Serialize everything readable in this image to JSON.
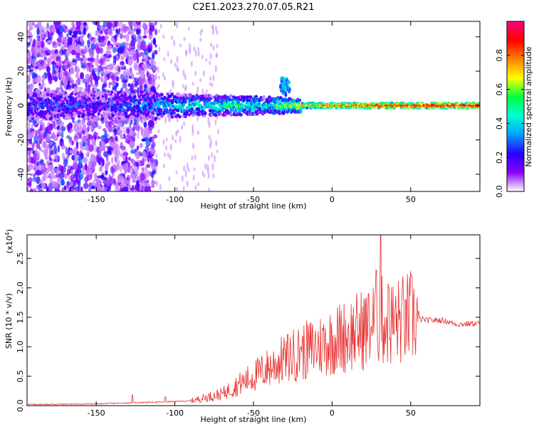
{
  "title": "C2E1.2023.270.07.05.R21",
  "chart_data": [
    {
      "type": "heatmap",
      "title": "C2E1.2023.270.07.05.R21",
      "xlabel": "Height of straight line (km)",
      "ylabel": "Frequency (Hz)",
      "xlim": [
        -194,
        94
      ],
      "ylim": [
        -50,
        49
      ],
      "xticks": [
        -150,
        -100,
        -50,
        0,
        50
      ],
      "yticks": [
        -40,
        -20,
        0,
        20,
        40
      ],
      "colorbar": {
        "label": "Normalized spectral amplitude",
        "range": [
          0.0,
          1.0
        ],
        "ticks": [
          0.0,
          0.2,
          0.4,
          0.6,
          0.8
        ],
        "colormap": [
          "#ffffff",
          "#8a00ff",
          "#2a00ff",
          "#00a0ff",
          "#00ffd0",
          "#00ff40",
          "#ffff00",
          "#ff8000",
          "#ff0000",
          "#ff0080"
        ]
      },
      "ridge": {
        "frequency_hz": 0,
        "points": [
          {
            "x": -190,
            "amp": 0.25
          },
          {
            "x": -150,
            "amp": 0.2
          },
          {
            "x": -120,
            "amp": 0.3
          },
          {
            "x": -100,
            "amp": 0.4
          },
          {
            "x": -80,
            "amp": 0.45
          },
          {
            "x": -60,
            "amp": 0.5
          },
          {
            "x": -40,
            "amp": 0.45
          },
          {
            "x": -20,
            "amp": 0.7
          },
          {
            "x": 0,
            "amp": 0.8
          },
          {
            "x": 20,
            "amp": 0.85
          },
          {
            "x": 50,
            "amp": 0.9
          },
          {
            "x": 90,
            "amp": 0.95
          }
        ]
      },
      "noise_extent_x": [
        -194,
        -112
      ],
      "grid": false
    },
    {
      "type": "line",
      "xlabel": "Height of straight line (km)",
      "ylabel": "SNR (10 * v/v)",
      "multiplier_label": "(x10",
      "multiplier_exp": "4",
      "xlim": [
        -194,
        94
      ],
      "ylim": [
        0,
        2.9
      ],
      "xticks": [
        -150,
        -100,
        -50,
        0,
        50
      ],
      "yticks": [
        0.0,
        0.5,
        1.0,
        1.5,
        2.0,
        2.5
      ],
      "color": "#e83030",
      "envelope": [
        {
          "x": -194,
          "y": 0.02
        },
        {
          "x": -150,
          "y": 0.03
        },
        {
          "x": -127,
          "y": 0.05
        },
        {
          "x": -110,
          "y": 0.06
        },
        {
          "x": -90,
          "y": 0.08
        },
        {
          "x": -70,
          "y": 0.2
        },
        {
          "x": -60,
          "y": 0.35
        },
        {
          "x": -50,
          "y": 0.5
        },
        {
          "x": -40,
          "y": 0.65
        },
        {
          "x": -30,
          "y": 0.8
        },
        {
          "x": -20,
          "y": 0.9
        },
        {
          "x": -10,
          "y": 1.0
        },
        {
          "x": 0,
          "y": 1.1
        },
        {
          "x": 10,
          "y": 1.2
        },
        {
          "x": 20,
          "y": 1.3
        },
        {
          "x": 30,
          "y": 1.45
        },
        {
          "x": 40,
          "y": 1.4
        },
        {
          "x": 50,
          "y": 1.5
        },
        {
          "x": 60,
          "y": 1.45
        },
        {
          "x": 70,
          "y": 1.45
        },
        {
          "x": 80,
          "y": 1.38
        },
        {
          "x": 94,
          "y": 1.4
        }
      ],
      "peaks": [
        {
          "x": -127,
          "y": 0.18
        },
        {
          "x": -106,
          "y": 0.15
        },
        {
          "x": -30,
          "y": 0.95
        },
        {
          "x": -20,
          "y": 1.0
        },
        {
          "x": 15,
          "y": 1.5
        },
        {
          "x": 23,
          "y": 1.9
        },
        {
          "x": 28,
          "y": 2.3
        },
        {
          "x": 31,
          "y": 2.9
        },
        {
          "x": 36,
          "y": 2.0
        },
        {
          "x": 47,
          "y": 1.8
        },
        {
          "x": 55,
          "y": 1.6
        }
      ],
      "grid": false
    }
  ]
}
